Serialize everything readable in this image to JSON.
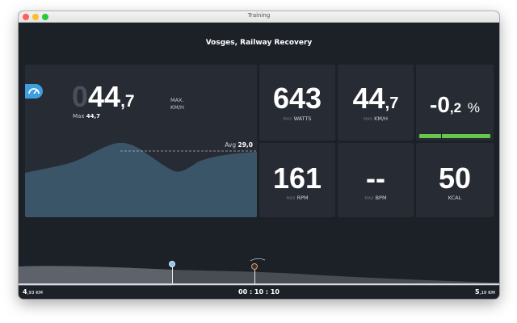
{
  "window": {
    "title": "Training"
  },
  "route": {
    "title": "Vosges, Railway Recovery"
  },
  "speed_panel": {
    "icon": "speedometer-icon",
    "value_leading_digit": "0",
    "value_integer": "44",
    "value_decimal": ",7",
    "max_caption": "MAX.",
    "unit": "KM/H",
    "max_label": "Max",
    "max_value": "44,7",
    "avg_label": "Avg",
    "avg_value": "29,0",
    "page_count": 3,
    "active_page": 2,
    "chart_color": "#3b5568"
  },
  "tiles": {
    "watts": {
      "value": "643",
      "max_prefix": "MAX",
      "unit": "WATTS"
    },
    "speed": {
      "value_integer": "44",
      "value_decimal": ",7",
      "max_prefix": "MAX",
      "unit": "KM/H"
    },
    "balance": {
      "value_integer": "-0",
      "value_decimal": ",2",
      "unit": "%",
      "bar_color": "#66c84a"
    },
    "rpm": {
      "value": "161",
      "max_prefix": "MAX",
      "unit": "RPM"
    },
    "bpm": {
      "value": "--",
      "max_prefix": "MAX",
      "unit": "BPM"
    },
    "kcal": {
      "value": "50",
      "unit": "KCAL"
    }
  },
  "footer": {
    "distance_left": "4",
    "distance_left_decimals": ",93 KM",
    "elapsed_time": "00 : 10 : 10",
    "distance_right": "5",
    "distance_right_decimals": ",10 KM"
  },
  "markers": {
    "rider_color": "#8cc4f0",
    "opponent_color": "#e39a62"
  }
}
